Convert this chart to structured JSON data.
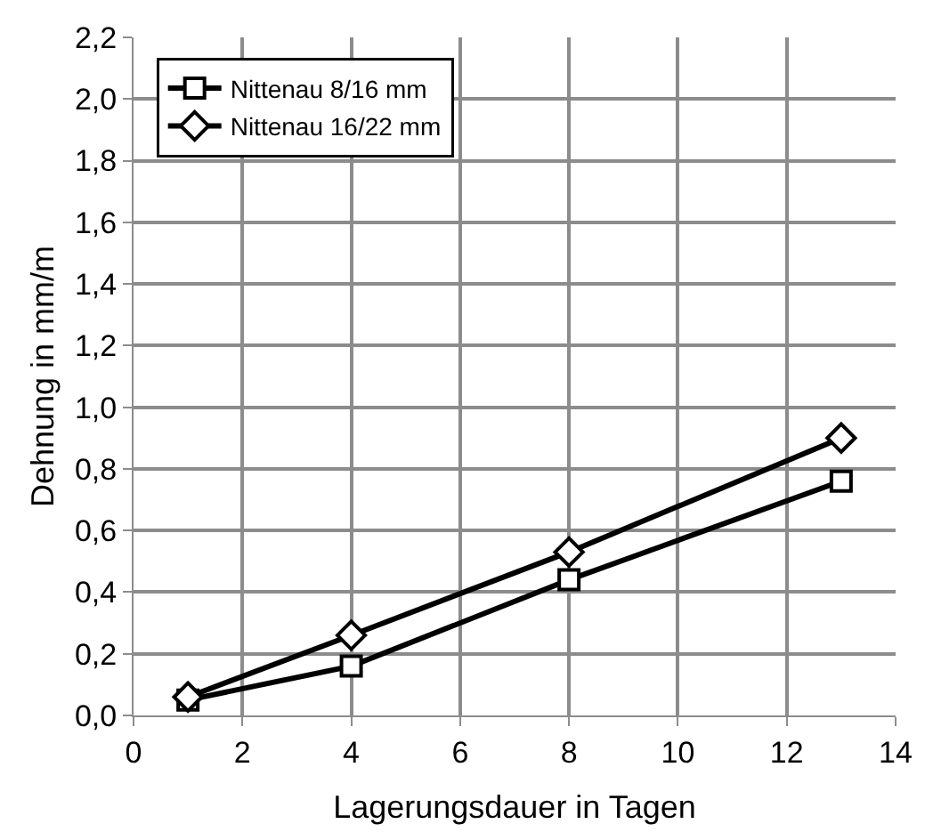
{
  "chart_data": {
    "type": "line",
    "xlabel": "Lagerungsdauer in Tagen",
    "ylabel": "Dehnung in mm/m",
    "x": [
      1,
      4,
      8,
      13
    ],
    "series": [
      {
        "name": "Nittenau 8/16 mm",
        "color": "#000000",
        "marker": "square",
        "values": [
          0.05,
          0.16,
          0.44,
          0.76
        ]
      },
      {
        "name": "Nittenau 16/22 mm",
        "color": "#000000",
        "marker": "diamond",
        "values": [
          0.06,
          0.26,
          0.53,
          0.9
        ]
      }
    ],
    "xlim": [
      0,
      14
    ],
    "xticks": [
      0,
      2,
      4,
      6,
      8,
      10,
      12,
      14
    ],
    "ylim": [
      0,
      2.2
    ],
    "yticks": [
      {
        "value": 0,
        "label": "0,0"
      },
      {
        "value": 0.2,
        "label": "0,2"
      },
      {
        "value": 0.4,
        "label": "0,4"
      },
      {
        "value": 0.6,
        "label": "0,6"
      },
      {
        "value": 0.8,
        "label": "0,8"
      },
      {
        "value": 1.0,
        "label": "1,0"
      },
      {
        "value": 1.2,
        "label": "1,2"
      },
      {
        "value": 1.4,
        "label": "1,4"
      },
      {
        "value": 1.6,
        "label": "1,6"
      },
      {
        "value": 1.8,
        "label": "1,8"
      },
      {
        "value": 2.0,
        "label": "2,0"
      },
      {
        "value": 2.2,
        "label": "2,2"
      }
    ],
    "grid": true,
    "legend": "top left",
    "line_style": "solid"
  }
}
